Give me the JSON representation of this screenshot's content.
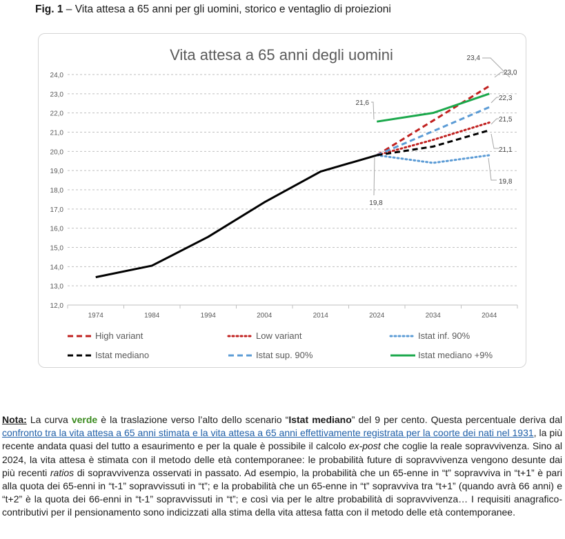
{
  "caption": {
    "fig_label": "Fig. 1",
    "text": " – Vita attesa a 65 anni per gli uomini, storico e ventaglio di proiezioni"
  },
  "chart_data": {
    "type": "line",
    "title": "Vita attesa a 65 anni degli uomini",
    "x": [
      "1974",
      "1984",
      "1994",
      "2004",
      "2014",
      "2024",
      "2034",
      "2044"
    ],
    "ylim": [
      12.0,
      24.0
    ],
    "yticks": [
      "12,0",
      "13,0",
      "14,0",
      "15,0",
      "16,0",
      "17,0",
      "18,0",
      "19,0",
      "20,0",
      "21,0",
      "22,0",
      "23,0",
      "24,0"
    ],
    "grid": true,
    "legend_position": "bottom",
    "series": [
      {
        "name": "Istat mediano",
        "color": "#000000",
        "style": "dashed",
        "x": [
          "1974",
          "1984",
          "1994",
          "2004",
          "2014",
          "2024",
          "2034",
          "2044"
        ],
        "values": [
          13.45,
          14.05,
          15.55,
          17.35,
          18.95,
          19.8,
          20.25,
          21.1
        ]
      },
      {
        "name": "High variant",
        "color": "#c0201f",
        "style": "dashed",
        "x": [
          "2024",
          "2034",
          "2044"
        ],
        "values": [
          19.8,
          21.6,
          23.4
        ]
      },
      {
        "name": "Low variant",
        "color": "#c0201f",
        "style": "dotted",
        "x": [
          "2024",
          "2034",
          "2044"
        ],
        "values": [
          19.8,
          20.6,
          21.5
        ]
      },
      {
        "name": "Istat inf. 90%",
        "color": "#5b9bd5",
        "style": "dotted",
        "x": [
          "2024",
          "2034",
          "2044"
        ],
        "values": [
          19.8,
          19.4,
          19.8
        ]
      },
      {
        "name": "Istat sup. 90%",
        "color": "#5b9bd5",
        "style": "dashed",
        "x": [
          "2024",
          "2034",
          "2044"
        ],
        "values": [
          19.8,
          21.05,
          22.3
        ]
      },
      {
        "name": "Istat mediano +9%",
        "color": "#1aa84b",
        "style": "solid",
        "x": [
          "2024",
          "2034",
          "2044"
        ],
        "values": [
          21.55,
          22.0,
          23.0
        ]
      }
    ],
    "annotations": [
      "23,4",
      "23,0",
      "22,3",
      "21,5",
      "21,1",
      "19,8",
      "21,6",
      "19,8"
    ],
    "legend": [
      "High variant",
      "Low variant",
      "Istat inf. 90%",
      "Istat mediano",
      "Istat sup. 90%",
      "Istat mediano +9%"
    ]
  },
  "note": {
    "label": "Nota:",
    "t1": " La curva ",
    "green_word": "verde",
    "t2": " è la traslazione verso l’alto dello scenario “",
    "bold1": "Istat mediano",
    "t3": "” del 9 per cento. Questa percentuale deriva dal ",
    "link": "confronto tra la vita attesa a 65 anni stimata e la vita attesa a 65 anni effettivamente registrata per la coorte dei nati nel 1931",
    "t4": ", la più recente andata quasi del tutto a esaurimento e per la quale è possibile il calcolo ",
    "italic1": "ex-post",
    "t5": " che coglie la reale sopravvivenza. Sino al 2024, la vita attesa è stimata con il metodo delle età contemporanee: le probabilità future di sopravvivenza vengono desunte dai più recenti ",
    "italic2": "ratios",
    "t6": " di sopravvivenza osservati in passato. Ad esempio, la probabilità che un 65-enne in “t” sopravviva in “t+1” è pari alla quota dei 65-enni in “t-1” sopravvissuti in “t”; e la probabilità che un 65-enne in “t” sopravviva tra “t+1” (quando avrà 66 anni) e “t+2” è la quota dei 66-enni in “t-1” sopravvissuti in “t”; e così via per le altre probabilità di sopravvivenza… I requisiti anagrafico-contributivi per il pensionamento sono indicizzati alla stima della vita attesa fatta con il metodo delle età contemporanee."
  }
}
